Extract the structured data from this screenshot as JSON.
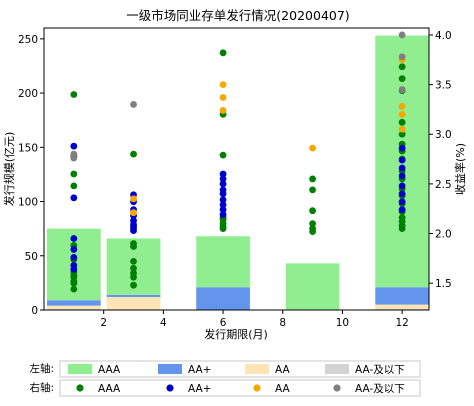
{
  "chart_data": {
    "type": "bar",
    "title": "一级市场同业存单发行情况(20200407)",
    "xlabel": "发行期限(月)",
    "ylabel_left": "发行规模(亿元)",
    "ylabel_right": "收益率(%)",
    "xlim": [
      0,
      12.9
    ],
    "ylim_left": [
      0,
      260
    ],
    "ylim_right": [
      1.23,
      4.07
    ],
    "x_ticks": [
      2,
      4,
      6,
      8,
      10,
      12
    ],
    "y_left_ticks": [
      0,
      50,
      100,
      150,
      200,
      250
    ],
    "y_right_ticks": [
      1.5,
      2.0,
      2.5,
      3.0,
      3.5,
      4.0
    ],
    "categories": [
      1,
      3,
      6,
      9,
      12
    ],
    "bar_series": [
      {
        "name": "AAA",
        "color": "#90ee90",
        "values": [
          66,
          52,
          47,
          43,
          232
        ]
      },
      {
        "name": "AA+",
        "color": "#6495ed",
        "values": [
          5,
          2,
          21,
          0,
          16
        ]
      },
      {
        "name": "AA",
        "color": "#ffe4b5",
        "values": [
          3,
          12,
          0,
          0,
          4
        ]
      },
      {
        "name": "AA-及以下",
        "color": "#d3d3d3",
        "values": [
          1,
          0,
          0,
          0,
          1
        ]
      }
    ],
    "scatter_series": [
      {
        "name": "AAA",
        "color": "#008000",
        "points": [
          [
            1,
            3.4
          ],
          [
            1,
            2.6
          ],
          [
            1,
            2.48
          ],
          [
            1,
            1.88
          ],
          [
            1,
            1.74
          ],
          [
            1,
            1.61
          ],
          [
            1,
            1.58
          ],
          [
            1,
            1.56
          ],
          [
            1,
            1.52
          ],
          [
            1,
            1.5
          ],
          [
            1,
            1.44
          ],
          [
            3,
            2.8
          ],
          [
            3,
            2.05
          ],
          [
            3,
            1.9
          ],
          [
            3,
            1.87
          ],
          [
            3,
            1.72
          ],
          [
            3,
            1.65
          ],
          [
            3,
            1.6
          ],
          [
            3,
            1.56
          ],
          [
            3,
            1.48
          ],
          [
            6,
            3.82
          ],
          [
            6,
            3.2
          ],
          [
            6,
            2.79
          ],
          [
            6,
            2.5
          ],
          [
            6,
            2.16
          ],
          [
            6,
            2.14
          ],
          [
            6,
            2.1
          ],
          [
            6,
            2.07
          ],
          [
            6,
            2.05
          ],
          [
            9,
            2.55
          ],
          [
            9,
            2.44
          ],
          [
            9,
            2.23
          ],
          [
            9,
            2.1
          ],
          [
            9,
            2.05
          ],
          [
            9,
            2.02
          ],
          [
            12,
            3.68
          ],
          [
            12,
            3.56
          ],
          [
            12,
            3.44
          ],
          [
            12,
            3.12
          ],
          [
            12,
            3.0
          ],
          [
            12,
            2.9
          ],
          [
            12,
            2.83
          ],
          [
            12,
            2.75
          ],
          [
            12,
            2.63
          ],
          [
            12,
            2.55
          ],
          [
            12,
            2.45
          ],
          [
            12,
            2.38
          ],
          [
            12,
            2.3
          ],
          [
            12,
            2.22
          ],
          [
            12,
            2.16
          ],
          [
            12,
            2.12
          ],
          [
            12,
            2.08
          ],
          [
            12,
            2.05
          ]
        ]
      },
      {
        "name": "AA+",
        "color": "#0000cd",
        "points": [
          [
            1,
            2.88
          ],
          [
            1,
            2.78
          ],
          [
            1,
            2.36
          ],
          [
            1,
            1.95
          ],
          [
            1,
            1.84
          ],
          [
            1,
            1.76
          ],
          [
            1,
            1.68
          ],
          [
            1,
            1.64
          ],
          [
            3,
            2.39
          ],
          [
            3,
            2.32
          ],
          [
            3,
            2.24
          ],
          [
            3,
            2.18
          ],
          [
            3,
            2.13
          ],
          [
            3,
            2.09
          ],
          [
            3,
            2.07
          ],
          [
            3,
            2.03
          ],
          [
            6,
            2.6
          ],
          [
            6,
            2.55
          ],
          [
            6,
            2.5
          ],
          [
            6,
            2.44
          ],
          [
            6,
            2.4
          ],
          [
            6,
            2.34
          ],
          [
            6,
            2.29
          ],
          [
            6,
            2.24
          ],
          [
            6,
            2.19
          ],
          [
            12,
            2.86
          ],
          [
            12,
            2.74
          ],
          [
            12,
            2.66
          ],
          [
            12,
            2.58
          ],
          [
            12,
            2.48
          ],
          [
            12,
            2.4
          ],
          [
            12,
            2.32
          ],
          [
            12,
            2.24
          ]
        ]
      },
      {
        "name": "AA",
        "color": "#f5a800",
        "points": [
          [
            3,
            2.35
          ],
          [
            3,
            2.21
          ],
          [
            6,
            3.5
          ],
          [
            6,
            3.37
          ],
          [
            6,
            3.24
          ],
          [
            9,
            2.86
          ],
          [
            12,
            3.75
          ],
          [
            12,
            3.28
          ],
          [
            12,
            3.2
          ],
          [
            12,
            3.05
          ]
        ]
      },
      {
        "name": "AA-及以下",
        "color": "#808080",
        "points": [
          [
            1,
            2.8
          ],
          [
            1,
            2.76
          ],
          [
            3,
            3.3
          ],
          [
            12,
            4.0
          ],
          [
            12,
            3.78
          ],
          [
            12,
            3.45
          ]
        ]
      }
    ],
    "legend": {
      "left_axis_label": "左轴:",
      "right_axis_label": "右轴:",
      "left_items": [
        "AAA",
        "AA+",
        "AA",
        "AA-及以下"
      ],
      "right_items": [
        "AAA",
        "AA+",
        "AA",
        "AA-及以下"
      ]
    }
  }
}
